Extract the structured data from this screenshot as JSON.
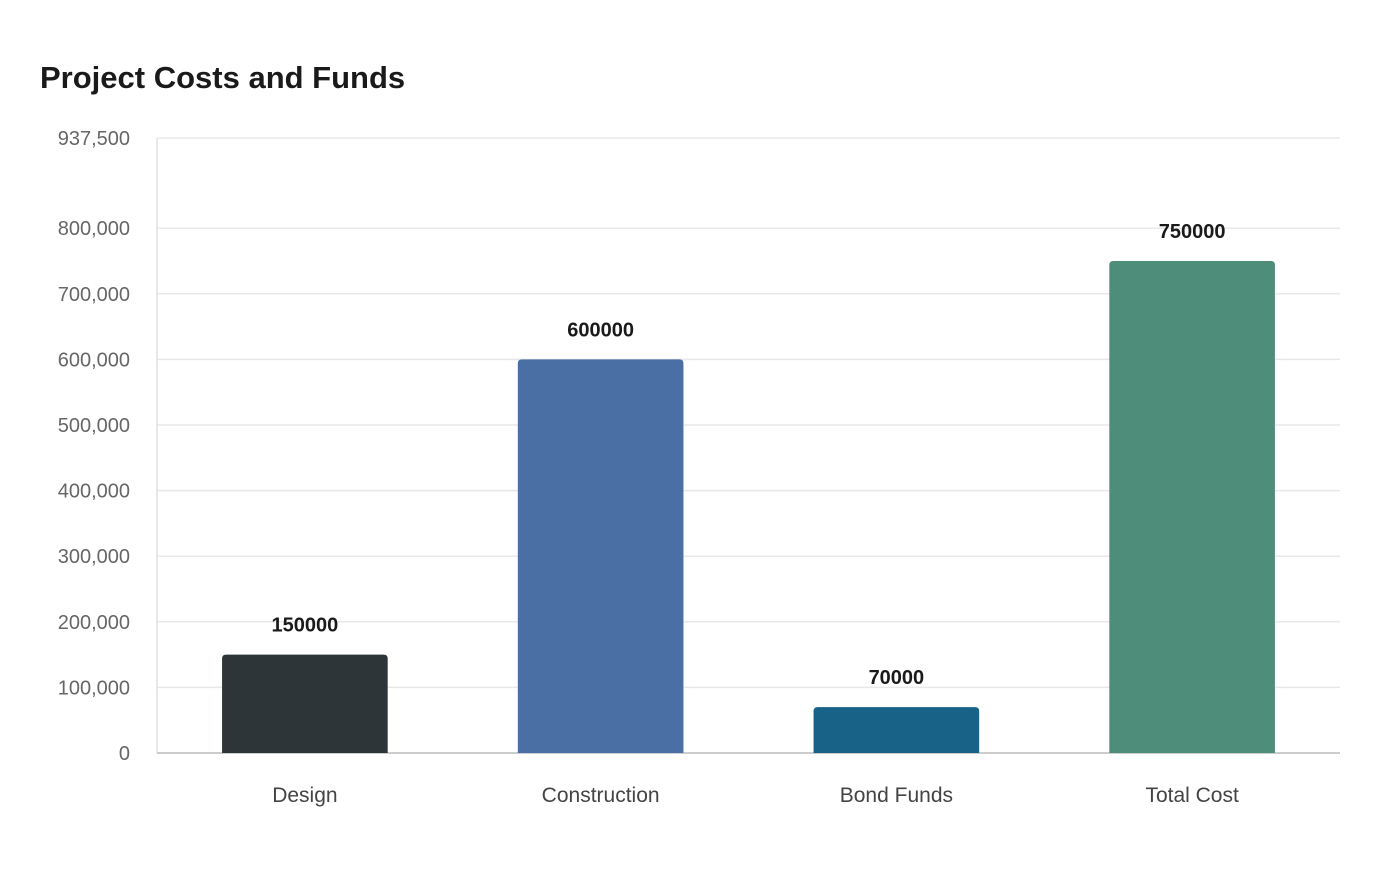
{
  "chart_data": {
    "type": "bar",
    "title": "Project Costs and Funds",
    "xlabel": "",
    "ylabel": "",
    "categories": [
      "Design",
      "Construction",
      "Bond Funds",
      "Total Cost"
    ],
    "values": [
      150000,
      600000,
      70000,
      750000
    ],
    "data_labels": [
      "150000",
      "600000",
      "70000",
      "750000"
    ],
    "colors": [
      "#2e3538",
      "#4a6fa5",
      "#186288",
      "#4f8d7b"
    ],
    "ylim": [
      0,
      937500
    ],
    "yticks": [
      0,
      100000,
      200000,
      300000,
      400000,
      500000,
      600000,
      700000,
      800000,
      937500
    ],
    "ytick_labels": [
      "0",
      "100,000",
      "200,000",
      "300,000",
      "400,000",
      "500,000",
      "600,000",
      "700,000",
      "800,000",
      "937,500"
    ],
    "grid": true,
    "legend": "none"
  }
}
